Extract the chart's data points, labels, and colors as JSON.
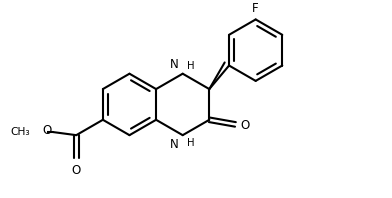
{
  "bg_color": "#ffffff",
  "line_color": "#000000",
  "line_width": 1.5,
  "font_size": 8.5,
  "figsize": [
    3.92,
    1.98
  ],
  "dpi": 100,
  "xlim": [
    -1.5,
    8.5
  ],
  "ylim": [
    -1.8,
    4.2
  ]
}
